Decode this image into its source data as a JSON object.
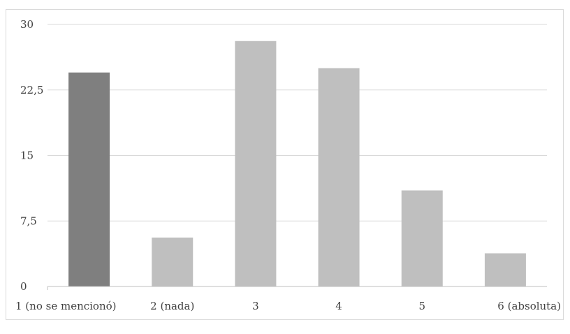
{
  "chart_data": {
    "type": "bar",
    "categories": [
      "1 (no se mencionó)",
      "2 (nada)",
      "3",
      "4",
      "5",
      "6 (absoluta)"
    ],
    "values": [
      24.5,
      5.6,
      28.1,
      25.0,
      11.0,
      3.8
    ],
    "highlight_index": 0,
    "yticks": [
      "0",
      "7,5",
      "15",
      "22,5",
      "30"
    ],
    "ylim": [
      0,
      30
    ],
    "grid": true,
    "legend": "none",
    "colors": {
      "highlight": "#7f7f7f",
      "bar": "#bfbfbf",
      "grid": "#d9d9d9",
      "axis": "#bfbfbf"
    }
  }
}
